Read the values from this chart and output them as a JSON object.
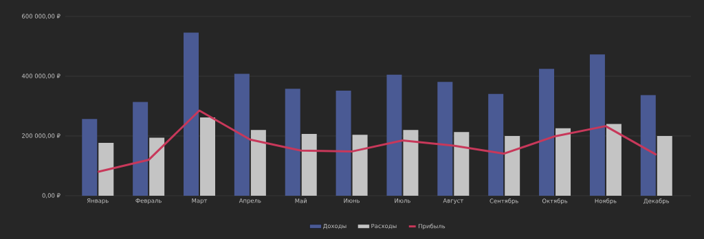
{
  "chart_data": {
    "type": "bar",
    "categories": [
      "Январь",
      "Февраль",
      "Март",
      "Апрель",
      "Май",
      "Июнь",
      "Июль",
      "Август",
      "Сентябрь",
      "Октябрь",
      "Ноябрь",
      "Декабрь"
    ],
    "series": [
      {
        "name": "Доходы",
        "color": "#4a5a94",
        "values": [
          257000,
          314000,
          546000,
          408000,
          358000,
          352000,
          405000,
          381000,
          341000,
          425000,
          473000,
          337000
        ]
      },
      {
        "name": "Расходы",
        "color": "#c4c4c4",
        "values": [
          177000,
          194000,
          262000,
          220000,
          207000,
          204000,
          220000,
          213000,
          200000,
          226000,
          240000,
          200000
        ]
      },
      {
        "name": "Прибыль",
        "type": "line",
        "color": "#c8385a",
        "values": [
          80000,
          120000,
          285000,
          188000,
          151000,
          148000,
          185000,
          168000,
          141000,
          199000,
          233000,
          137000
        ]
      }
    ],
    "ylim": [
      0,
      600000
    ],
    "yticks": [
      {
        "value": 0,
        "label": "0,00 ₽"
      },
      {
        "value": 200000,
        "label": "200 000,00 ₽"
      },
      {
        "value": 400000,
        "label": "400 000,00 ₽"
      },
      {
        "value": 600000,
        "label": "600 000,00 ₽"
      }
    ],
    "grid": "y",
    "legend": "bottom",
    "marker": "none",
    "line_style": "solid"
  }
}
